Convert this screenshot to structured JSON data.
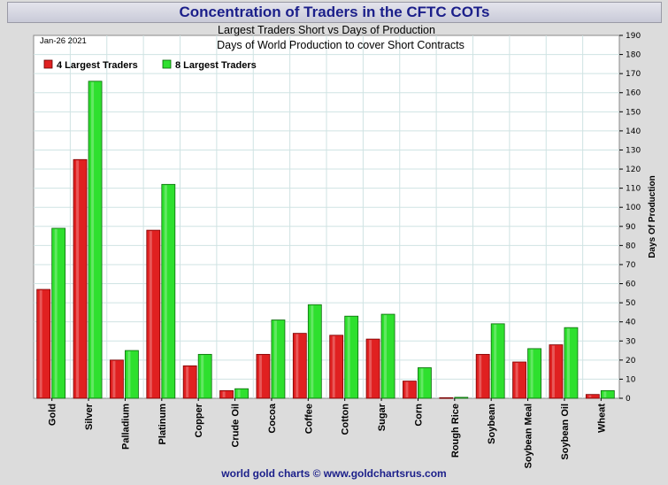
{
  "title": "Concentration of Traders in the CFTC COTs",
  "footer": "world gold charts © www.goldchartsrus.com",
  "colors": {
    "series1": "#e02020",
    "series2": "#2ee02e"
  },
  "chart_data": {
    "type": "bar",
    "subtitle1": "Largest Traders Short vs Days of Production",
    "subtitle2": "Days of World Production to cover Short Contracts",
    "date": "Jan-26  2021",
    "ylabel": "Days Of Production",
    "ylim": [
      0,
      190
    ],
    "ytick_step": 10,
    "grid": true,
    "legend_position": "top-left",
    "categories": [
      "Gold",
      "Silver",
      "Palladium",
      "Platinum",
      "Copper",
      "Crude Oil",
      "Cocoa",
      "Coffee",
      "Cotton",
      "Sugar",
      "Corn",
      "Rough Rice",
      "Soybean",
      "Soybean Meal",
      "Soybean Oil",
      "Wheat"
    ],
    "series": [
      {
        "name": "4 Largest Traders",
        "values": [
          57,
          125,
          20,
          88,
          17,
          4,
          23,
          34,
          33,
          31,
          9,
          0.3,
          23,
          19,
          28,
          2
        ]
      },
      {
        "name": "8 Largest Traders",
        "values": [
          89,
          166,
          25,
          112,
          23,
          5,
          41,
          49,
          43,
          44,
          16,
          0.5,
          39,
          26,
          37,
          4
        ]
      }
    ]
  }
}
